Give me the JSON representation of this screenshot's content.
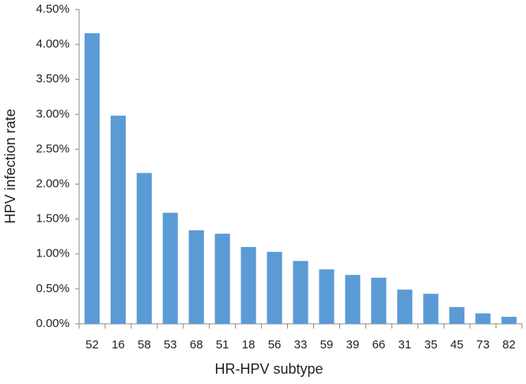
{
  "chart_data": {
    "type": "bar",
    "x_label": "HR-HPV subtype",
    "y_label": "HPV infection rate",
    "categories": [
      "52",
      "16",
      "58",
      "53",
      "68",
      "51",
      "18",
      "56",
      "33",
      "59",
      "39",
      "66",
      "31",
      "35",
      "45",
      "73",
      "82"
    ],
    "values": [
      4.16,
      2.98,
      2.16,
      1.59,
      1.34,
      1.29,
      1.1,
      1.03,
      0.9,
      0.78,
      0.7,
      0.66,
      0.49,
      0.43,
      0.24,
      0.15,
      0.1
    ],
    "color": "#5b9bd5",
    "ylim": [
      0,
      4.5
    ],
    "yticks": [
      {
        "value": 0,
        "label": "0.00%"
      },
      {
        "value": 0.5,
        "label": "0.50%"
      },
      {
        "value": 1,
        "label": "1.00%"
      },
      {
        "value": 1.5,
        "label": "1.50%"
      },
      {
        "value": 2,
        "label": "2.00%"
      },
      {
        "value": 2.5,
        "label": "2.50%"
      },
      {
        "value": 3,
        "label": "3.00%"
      },
      {
        "value": 3.5,
        "label": "3.50%"
      },
      {
        "value": 4,
        "label": "4.00%"
      },
      {
        "value": 4.5,
        "label": "4.50%"
      }
    ],
    "grid": false
  }
}
